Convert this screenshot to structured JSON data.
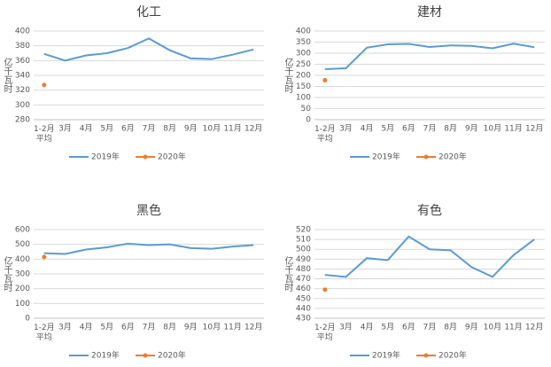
{
  "chart_data": [
    {
      "type": "line",
      "title": "化工",
      "y_label": "亿千瓦时",
      "categories": [
        "1-2月\n平均",
        "3月",
        "4月",
        "5月",
        "6月",
        "7月",
        "8月",
        "9月",
        "10月",
        "11月",
        "12月"
      ],
      "series": [
        {
          "name": "2019年",
          "color": "#5b9bd5",
          "values": [
            369,
            360,
            367,
            370,
            377,
            390,
            374,
            363,
            362,
            368,
            375
          ]
        },
        {
          "name": "2020年",
          "color": "#ed7d31",
          "values": [
            327,
            null,
            null,
            null,
            null,
            null,
            null,
            null,
            null,
            null,
            null
          ]
        }
      ],
      "ylim": [
        280,
        400
      ],
      "yticks": [
        280,
        300,
        320,
        340,
        360,
        380,
        400
      ],
      "grid": true,
      "legend": "bottom"
    },
    {
      "type": "line",
      "title": "建材",
      "y_label": "亿千瓦时",
      "categories": [
        "1-2月\n平均",
        "3月",
        "4月",
        "5月",
        "6月",
        "7月",
        "8月",
        "9月",
        "10月",
        "11月",
        "12月"
      ],
      "series": [
        {
          "name": "2019年",
          "color": "#5b9bd5",
          "values": [
            228,
            232,
            325,
            340,
            342,
            328,
            335,
            333,
            322,
            343,
            327
          ]
        },
        {
          "name": "2020年",
          "color": "#ed7d31",
          "values": [
            178,
            null,
            null,
            null,
            null,
            null,
            null,
            null,
            null,
            null,
            null
          ]
        }
      ],
      "ylim": [
        0,
        400
      ],
      "yticks": [
        0,
        50,
        100,
        150,
        200,
        250,
        300,
        350,
        400
      ],
      "grid": true,
      "legend": "bottom"
    },
    {
      "type": "line",
      "title": "黑色",
      "y_label": "亿千瓦时",
      "categories": [
        "1-2月\n平均",
        "3月",
        "4月",
        "5月",
        "6月",
        "7月",
        "8月",
        "9月",
        "10月",
        "11月",
        "12月"
      ],
      "series": [
        {
          "name": "2019年",
          "color": "#5b9bd5",
          "values": [
            440,
            435,
            465,
            480,
            505,
            495,
            500,
            475,
            470,
            485,
            495
          ]
        },
        {
          "name": "2020年",
          "color": "#ed7d31",
          "values": [
            415,
            null,
            null,
            null,
            null,
            null,
            null,
            null,
            null,
            null,
            null
          ]
        }
      ],
      "ylim": [
        0,
        600
      ],
      "yticks": [
        0,
        100,
        200,
        300,
        400,
        500,
        600
      ],
      "grid": true,
      "legend": "bottom"
    },
    {
      "type": "line",
      "title": "有色",
      "y_label": "亿千瓦时",
      "categories": [
        "1-2月\n平均",
        "3月",
        "4月",
        "5月",
        "6月",
        "7月",
        "8月",
        "9月",
        "10月",
        "11月",
        "12月"
      ],
      "series": [
        {
          "name": "2019年",
          "color": "#5b9bd5",
          "values": [
            474,
            472,
            491,
            489,
            513,
            500,
            499,
            482,
            472,
            494,
            510
          ]
        },
        {
          "name": "2020年",
          "color": "#ed7d31",
          "values": [
            459,
            null,
            null,
            null,
            null,
            null,
            null,
            null,
            null,
            null,
            null
          ]
        }
      ],
      "ylim": [
        430,
        520
      ],
      "yticks": [
        430,
        440,
        450,
        460,
        470,
        480,
        490,
        500,
        510,
        520
      ],
      "grid": true,
      "legend": "bottom"
    }
  ]
}
